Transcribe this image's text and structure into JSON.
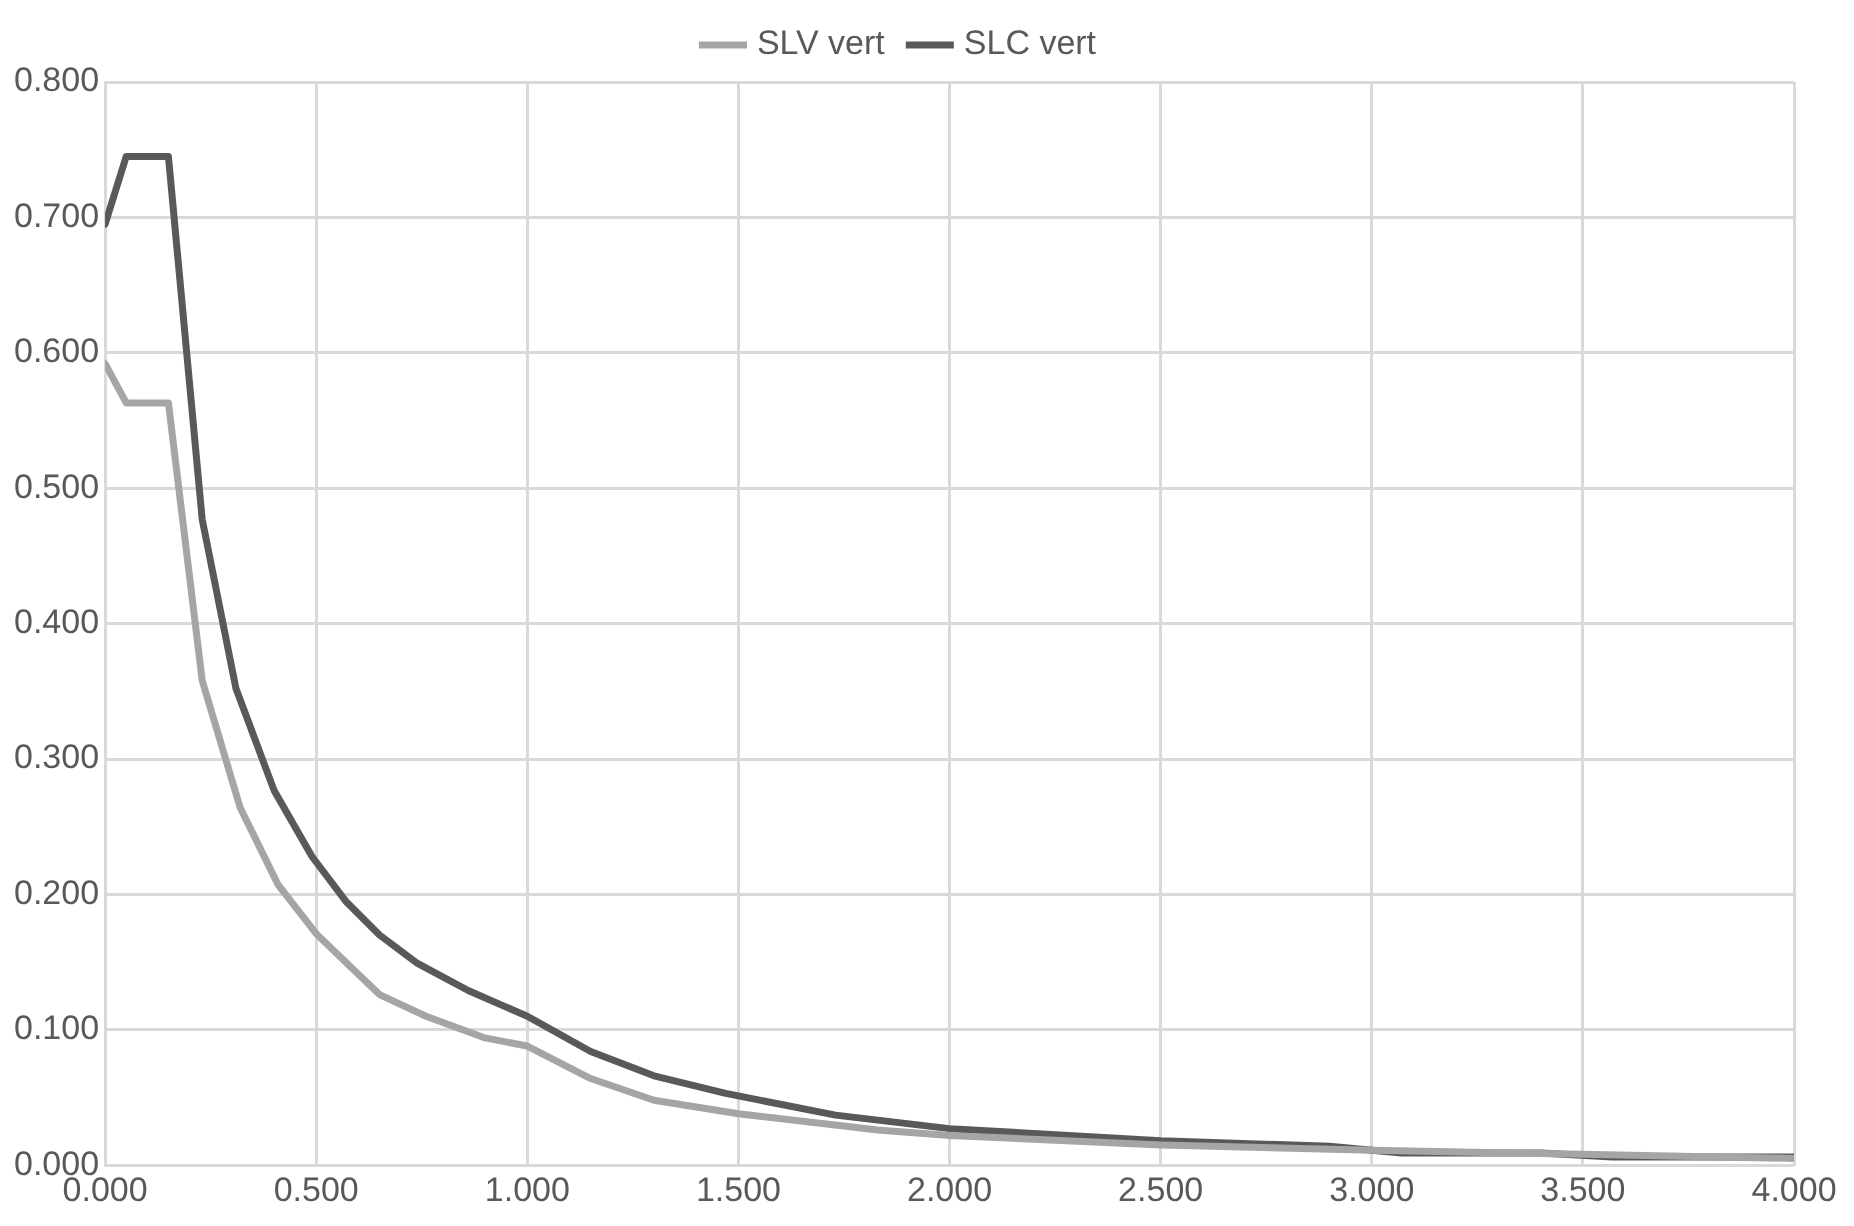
{
  "chart_data": {
    "type": "line",
    "legend": "top",
    "grid": true,
    "marker": "none",
    "line_style": "solid",
    "xlim": [
      0,
      4
    ],
    "ylim": [
      0,
      0.8
    ],
    "xticks": [
      {
        "value": 0,
        "label": "0.000"
      },
      {
        "value": 0.5,
        "label": "0.500"
      },
      {
        "value": 1,
        "label": "1.000"
      },
      {
        "value": 1.5,
        "label": "1.500"
      },
      {
        "value": 2,
        "label": "2.000"
      },
      {
        "value": 2.5,
        "label": "2.500"
      },
      {
        "value": 3,
        "label": "3.000"
      },
      {
        "value": 3.5,
        "label": "3.500"
      },
      {
        "value": 4,
        "label": "4.000"
      }
    ],
    "yticks": [
      {
        "value": 0,
        "label": "0.000"
      },
      {
        "value": 0.1,
        "label": "0.100"
      },
      {
        "value": 0.2,
        "label": "0.200"
      },
      {
        "value": 0.3,
        "label": "0.300"
      },
      {
        "value": 0.4,
        "label": "0.400"
      },
      {
        "value": 0.5,
        "label": "0.500"
      },
      {
        "value": 0.6,
        "label": "0.600"
      },
      {
        "value": 0.7,
        "label": "0.700"
      },
      {
        "value": 0.8,
        "label": "0.800"
      }
    ],
    "series": [
      {
        "name": "SLV vert",
        "color": "#a5a5a5",
        "x": [
          0,
          0.05,
          0.15,
          0.23,
          0.32,
          0.41,
          0.5,
          0.58,
          0.65,
          0.76,
          0.9,
          1.0,
          1.15,
          1.3,
          1.5,
          1.83,
          2.0,
          2.5,
          3.0,
          3.5,
          4.0
        ],
        "values": [
          0.592,
          0.563,
          0.563,
          0.358,
          0.264,
          0.207,
          0.171,
          0.147,
          0.126,
          0.11,
          0.094,
          0.088,
          0.064,
          0.048,
          0.038,
          0.026,
          0.022,
          0.015,
          0.011,
          0.008,
          0.005
        ]
      },
      {
        "name": "SLC vert",
        "color": "#595959",
        "x": [
          0,
          0.05,
          0.15,
          0.23,
          0.31,
          0.4,
          0.49,
          0.57,
          0.65,
          0.74,
          0.86,
          1.0,
          1.15,
          1.3,
          1.47,
          1.73,
          2.0,
          2.5,
          2.9,
          3.07,
          3.4,
          3.57,
          4.0
        ],
        "values": [
          0.695,
          0.745,
          0.745,
          0.477,
          0.352,
          0.277,
          0.228,
          0.195,
          0.17,
          0.149,
          0.129,
          0.11,
          0.084,
          0.066,
          0.053,
          0.037,
          0.027,
          0.018,
          0.014,
          0.009,
          0.009,
          0.006,
          0.006
        ]
      }
    ]
  }
}
